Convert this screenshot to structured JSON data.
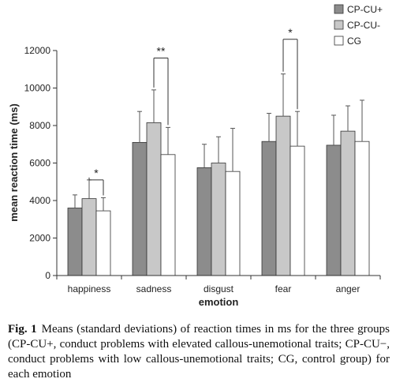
{
  "chart_data": {
    "type": "bar",
    "categories": [
      "happiness",
      "sadness",
      "disgust",
      "fear",
      "anger"
    ],
    "series": [
      {
        "name": "CP-CU+",
        "color": "#8c8c8c",
        "values": [
          3600,
          7100,
          5750,
          7150,
          6950
        ],
        "sd": [
          700,
          1650,
          1250,
          1500,
          1600
        ]
      },
      {
        "name": "CP-CU-",
        "color": "#c8c8c8",
        "values": [
          4100,
          8150,
          6000,
          8500,
          7700
        ],
        "sd": [
          1000,
          1750,
          1400,
          2250,
          1350
        ]
      },
      {
        "name": "CG",
        "color": "#ffffff",
        "values": [
          3450,
          6450,
          5550,
          6900,
          7150
        ],
        "sd": [
          700,
          1450,
          2300,
          1850,
          2200
        ]
      }
    ],
    "significance": [
      {
        "category": "happiness",
        "between": [
          "CP-CU-",
          "CG"
        ],
        "label": "*",
        "level": 5100
      },
      {
        "category": "sadness",
        "between": [
          "CP-CU-",
          "CG"
        ],
        "label": "**",
        "level": 11600
      },
      {
        "category": "fear",
        "between": [
          "CP-CU-",
          "CG"
        ],
        "label": "*",
        "level": 12600
      }
    ],
    "xlabel": "emotion",
    "ylabel": "mean reaction time (ms)",
    "ylim": [
      0,
      12000
    ],
    "yticks": [
      "0",
      "2000",
      "4000",
      "6000",
      "8000",
      "10000",
      "12000"
    ],
    "grid": false,
    "legend_position": "top-right"
  },
  "caption": {
    "figure_number": "Fig. 1",
    "text": "Means (standard deviations) of reaction times in ms for the three groups (CP-CU+, conduct problems with elevated callous-unemotional traits; CP-CU−, conduct problems with low callous-unemotional traits; CG, control group) for each emotion"
  }
}
